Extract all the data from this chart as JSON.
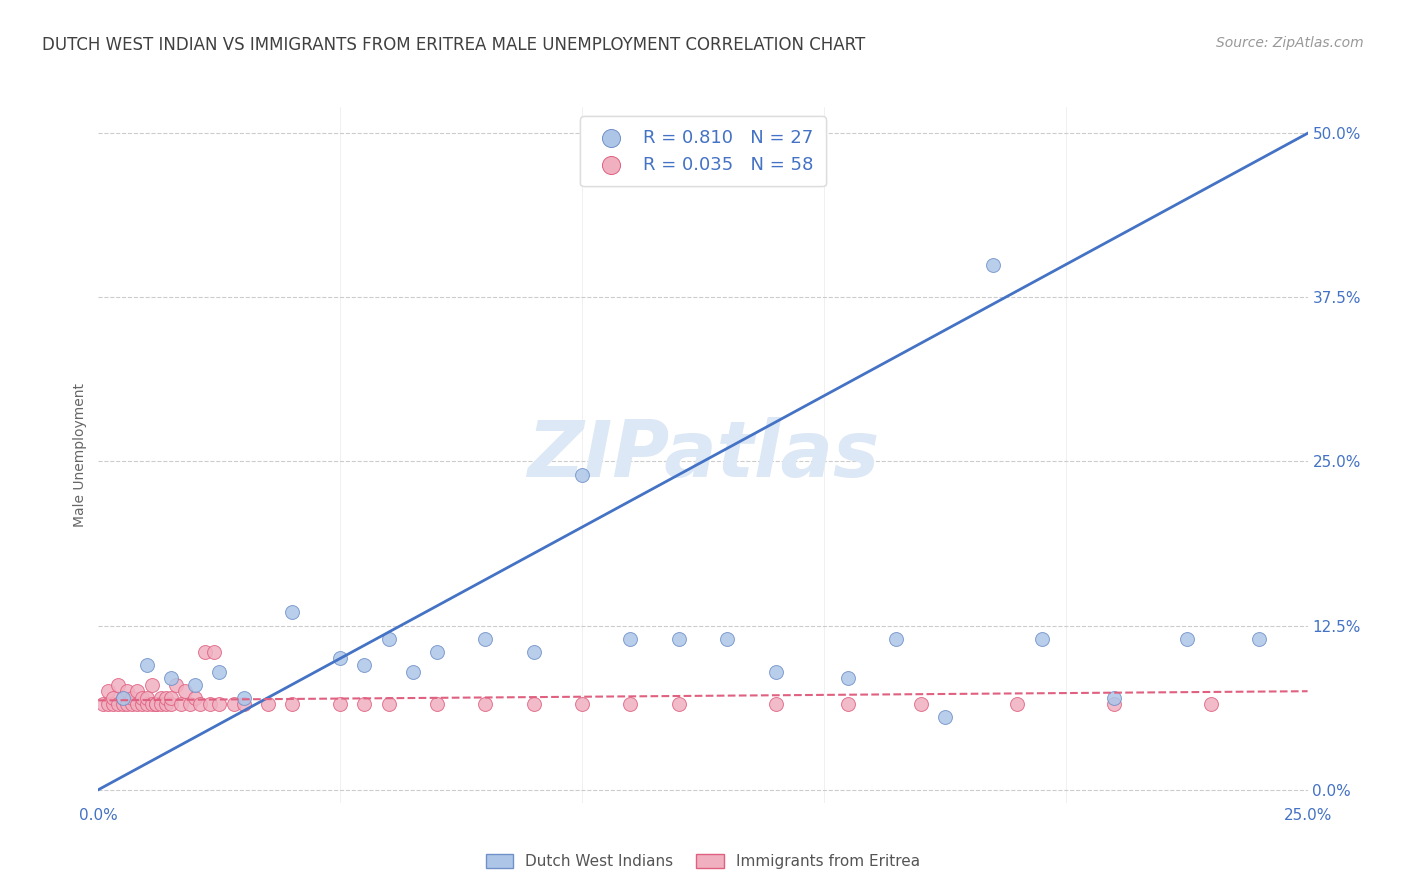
{
  "title": "DUTCH WEST INDIAN VS IMMIGRANTS FROM ERITREA MALE UNEMPLOYMENT CORRELATION CHART",
  "source": "Source: ZipAtlas.com",
  "ylabel": "Male Unemployment",
  "xlim": [
    0.0,
    0.25
  ],
  "ylim": [
    -0.01,
    0.52
  ],
  "xticks": [
    0.0,
    0.05,
    0.1,
    0.15,
    0.2,
    0.25
  ],
  "xtick_labels": [
    "0.0%",
    "",
    "",
    "",
    "",
    "25.0%"
  ],
  "ytick_values": [
    0.0,
    0.125,
    0.25,
    0.375,
    0.5
  ],
  "ytick_labels": [
    "0.0%",
    "12.5%",
    "25.0%",
    "37.5%",
    "50.0%"
  ],
  "watermark": "ZIPatlas",
  "legend_label1": "Dutch West Indians",
  "legend_label2": "Immigrants from Eritrea",
  "blue_R": 0.81,
  "blue_N": 27,
  "pink_R": 0.035,
  "pink_N": 58,
  "blue_scatter_x": [
    0.005,
    0.01,
    0.015,
    0.02,
    0.025,
    0.03,
    0.04,
    0.05,
    0.055,
    0.06,
    0.065,
    0.07,
    0.08,
    0.09,
    0.1,
    0.11,
    0.12,
    0.13,
    0.14,
    0.155,
    0.165,
    0.175,
    0.185,
    0.195,
    0.21,
    0.225,
    0.24
  ],
  "blue_scatter_y": [
    0.07,
    0.095,
    0.085,
    0.08,
    0.09,
    0.07,
    0.135,
    0.1,
    0.095,
    0.115,
    0.09,
    0.105,
    0.115,
    0.105,
    0.24,
    0.115,
    0.115,
    0.115,
    0.09,
    0.085,
    0.115,
    0.055,
    0.4,
    0.115,
    0.07,
    0.115,
    0.115
  ],
  "pink_scatter_x": [
    0.001,
    0.002,
    0.002,
    0.003,
    0.003,
    0.004,
    0.004,
    0.005,
    0.005,
    0.006,
    0.006,
    0.007,
    0.007,
    0.008,
    0.008,
    0.009,
    0.009,
    0.01,
    0.01,
    0.011,
    0.011,
    0.012,
    0.012,
    0.013,
    0.013,
    0.014,
    0.014,
    0.015,
    0.015,
    0.016,
    0.017,
    0.018,
    0.019,
    0.02,
    0.021,
    0.022,
    0.023,
    0.024,
    0.025,
    0.028,
    0.03,
    0.035,
    0.04,
    0.05,
    0.055,
    0.06,
    0.07,
    0.08,
    0.09,
    0.1,
    0.11,
    0.12,
    0.14,
    0.155,
    0.17,
    0.19,
    0.21,
    0.23
  ],
  "pink_scatter_y": [
    0.065,
    0.065,
    0.075,
    0.065,
    0.07,
    0.065,
    0.08,
    0.065,
    0.07,
    0.065,
    0.075,
    0.065,
    0.07,
    0.065,
    0.075,
    0.065,
    0.07,
    0.065,
    0.07,
    0.065,
    0.08,
    0.065,
    0.065,
    0.07,
    0.065,
    0.065,
    0.07,
    0.065,
    0.07,
    0.08,
    0.065,
    0.075,
    0.065,
    0.07,
    0.065,
    0.105,
    0.065,
    0.105,
    0.065,
    0.065,
    0.065,
    0.065,
    0.065,
    0.065,
    0.065,
    0.065,
    0.065,
    0.065,
    0.065,
    0.065,
    0.065,
    0.065,
    0.065,
    0.065,
    0.065,
    0.065,
    0.065,
    0.065
  ],
  "blue_line_x": [
    0.0,
    0.25
  ],
  "blue_line_y": [
    0.0,
    0.5
  ],
  "pink_line_x": [
    0.0,
    0.25
  ],
  "pink_line_y": [
    0.068,
    0.075
  ],
  "blue_line_color": "#4472c4",
  "pink_line_color": "#e06080",
  "blue_scatter_color": "#adc6e8",
  "pink_scatter_color": "#f0b0c0",
  "grid_color": "#cccccc",
  "background_color": "#ffffff",
  "title_color": "#404040",
  "axis_label_color": "#4472c4",
  "watermark_color": "#dce8f5",
  "title_fontsize": 12,
  "axis_fontsize": 10,
  "tick_fontsize": 11,
  "source_fontsize": 10
}
